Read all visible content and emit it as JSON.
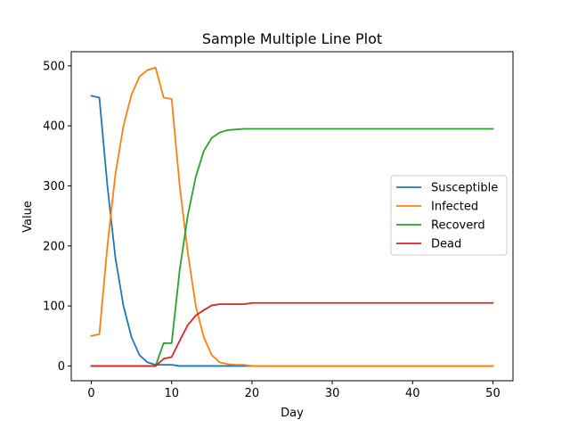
{
  "chart_data": {
    "type": "line",
    "title": "Sample Multiple Line Plot",
    "xlabel": "Day",
    "ylabel": "Value",
    "xlim": [
      -2.5,
      52.5
    ],
    "ylim": [
      -24.6,
      523.5
    ],
    "xticks": [
      0,
      10,
      20,
      30,
      40,
      50
    ],
    "yticks": [
      0,
      100,
      200,
      300,
      400,
      500
    ],
    "grid": false,
    "legend_position": "center-right",
    "x": [
      0,
      1,
      2,
      3,
      4,
      5,
      6,
      7,
      8,
      9,
      10,
      11,
      12,
      13,
      14,
      15,
      16,
      17,
      18,
      19,
      20,
      21,
      22,
      23,
      24,
      25,
      26,
      27,
      28,
      29,
      30,
      31,
      32,
      33,
      34,
      35,
      36,
      37,
      38,
      39,
      40,
      41,
      42,
      43,
      44,
      45,
      46,
      47,
      48,
      49,
      50
    ],
    "series": [
      {
        "name": "Susceptible",
        "color": "#1f77b4",
        "values": [
          450,
          447,
          300,
          180,
          100,
          48,
          18,
          6,
          2,
          2,
          2,
          0,
          0,
          0,
          0,
          0,
          0,
          0,
          0,
          0,
          0,
          0,
          0,
          0,
          0,
          0,
          0,
          0,
          0,
          0,
          0,
          0,
          0,
          0,
          0,
          0,
          0,
          0,
          0,
          0,
          0,
          0,
          0,
          0,
          0,
          0,
          0,
          0,
          0,
          0,
          0
        ]
      },
      {
        "name": "Infected",
        "color": "#ff7f0e",
        "values": [
          50,
          53,
          200,
          320,
          400,
          452,
          482,
          493,
          497,
          447,
          445,
          300,
          190,
          100,
          48,
          18,
          6,
          3,
          2,
          2,
          0,
          0,
          0,
          0,
          0,
          0,
          0,
          0,
          0,
          0,
          0,
          0,
          0,
          0,
          0,
          0,
          0,
          0,
          0,
          0,
          0,
          0,
          0,
          0,
          0,
          0,
          0,
          0,
          0,
          0,
          0
        ]
      },
      {
        "name": "Recoverd",
        "color": "#2ca02c",
        "values": [
          0,
          0,
          0,
          0,
          0,
          0,
          0,
          0,
          0,
          38,
          38,
          160,
          250,
          315,
          358,
          380,
          389,
          393,
          394,
          395,
          395,
          395,
          395,
          395,
          395,
          395,
          395,
          395,
          395,
          395,
          395,
          395,
          395,
          395,
          395,
          395,
          395,
          395,
          395,
          395,
          395,
          395,
          395,
          395,
          395,
          395,
          395,
          395,
          395,
          395,
          395
        ]
      },
      {
        "name": "Dead",
        "color": "#d62728",
        "values": [
          0,
          0,
          0,
          0,
          0,
          0,
          0,
          0,
          0,
          12,
          15,
          42,
          68,
          84,
          93,
          101,
          103,
          103,
          103,
          103,
          105,
          105,
          105,
          105,
          105,
          105,
          105,
          105,
          105,
          105,
          105,
          105,
          105,
          105,
          105,
          105,
          105,
          105,
          105,
          105,
          105,
          105,
          105,
          105,
          105,
          105,
          105,
          105,
          105,
          105,
          105
        ]
      }
    ]
  }
}
